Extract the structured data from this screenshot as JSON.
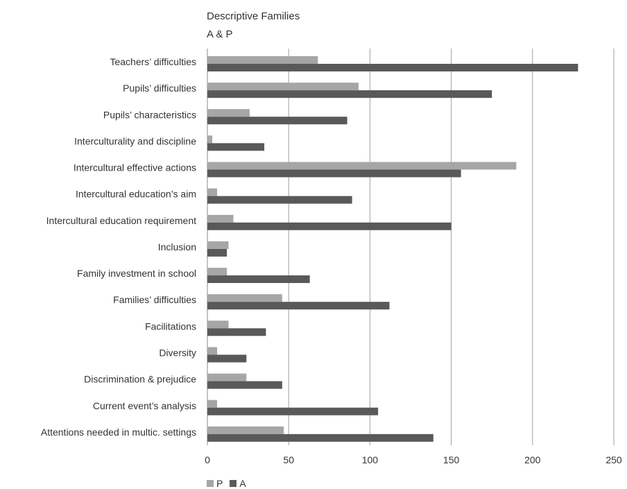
{
  "chart_data": {
    "type": "bar",
    "orientation": "horizontal",
    "title": "Descriptive Families",
    "subtitle": "A & P",
    "categories": [
      "Teachers’ difficulties",
      "Pupils’ difficulties",
      "Pupils’ characteristics",
      "Interculturality and discipline",
      "Intercultural effective actions",
      "Intercultural education’s aim",
      "Intercultural education requirement",
      "Inclusion",
      "Family investment in school",
      "Families’ difficulties",
      "Facilitations",
      "Diversity",
      "Discrimination & prejudice",
      "Current event’s analysis",
      "Attentions needed in multic. settings"
    ],
    "series": [
      {
        "name": "P",
        "color": "#a6a6a6",
        "values": [
          68,
          93,
          26,
          3,
          190,
          6,
          16,
          13,
          12,
          46,
          13,
          6,
          24,
          6,
          47
        ]
      },
      {
        "name": "A",
        "color": "#595959",
        "values": [
          228,
          175,
          86,
          35,
          156,
          89,
          150,
          12,
          63,
          112,
          36,
          24,
          46,
          105,
          139
        ]
      }
    ],
    "xlim": [
      0,
      250
    ],
    "xticks": [
      0,
      50,
      100,
      150,
      200,
      250
    ],
    "grid": true,
    "legend_position": "bottom-left"
  }
}
